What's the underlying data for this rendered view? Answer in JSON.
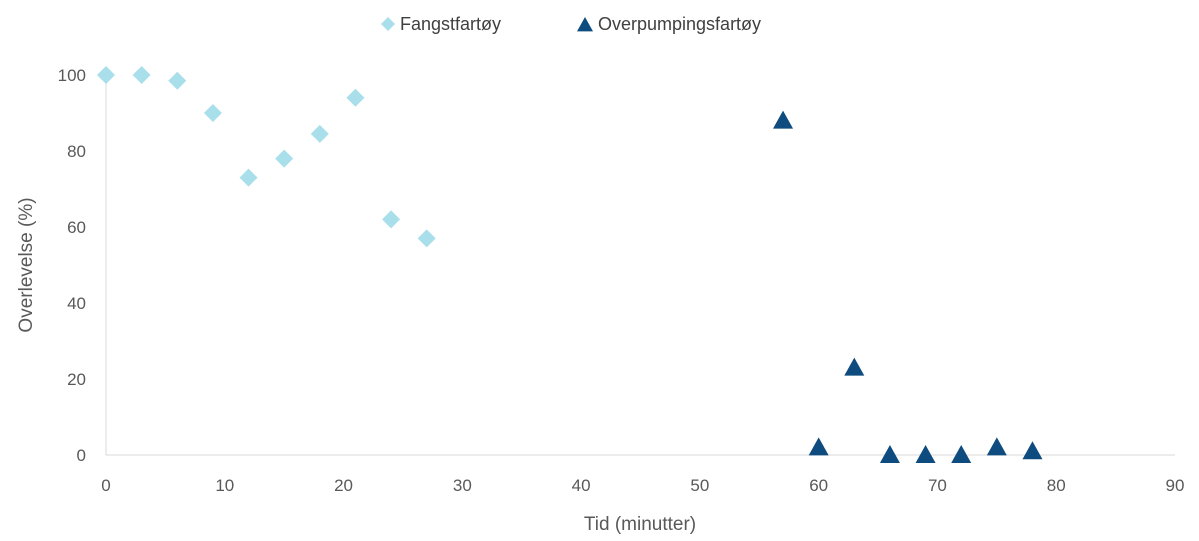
{
  "chart_data": {
    "type": "scatter",
    "title": "",
    "xlabel": "Tid (minutter)",
    "ylabel": "Overlevelse (%)",
    "xlim": [
      0,
      90
    ],
    "ylim": [
      0,
      100
    ],
    "xticks": [
      0,
      10,
      20,
      30,
      40,
      50,
      60,
      70,
      80,
      90
    ],
    "yticks": [
      0,
      20,
      40,
      60,
      80,
      100
    ],
    "grid": false,
    "legend_position": "top",
    "series": [
      {
        "name": "Fangstfartøy",
        "marker": "diamond",
        "color": "#a8dfea",
        "x": [
          0,
          3,
          6,
          9,
          12,
          15,
          18,
          21,
          24,
          27
        ],
        "y": [
          100,
          100,
          98.5,
          90,
          73,
          78,
          84.5,
          94,
          62,
          57
        ]
      },
      {
        "name": "Overpumpingsfartøy",
        "marker": "triangle",
        "color": "#0e4b7e",
        "x": [
          57,
          60,
          63,
          66,
          69,
          72,
          75,
          78
        ],
        "y": [
          88,
          2,
          23,
          0,
          0,
          0,
          2,
          1
        ]
      }
    ]
  }
}
